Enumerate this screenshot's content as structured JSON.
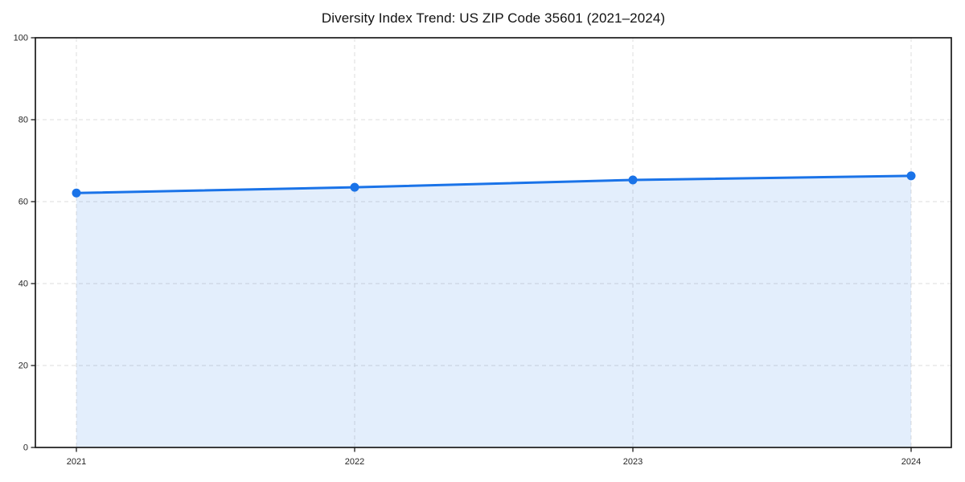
{
  "chart_data": {
    "type": "area",
    "title": "Diversity Index Trend: US ZIP Code 35601 (2021–2024)",
    "x": [
      "2021",
      "2022",
      "2023",
      "2024"
    ],
    "series": [
      {
        "name": "Diversity Index",
        "values": [
          62.1,
          63.5,
          65.3,
          66.3
        ]
      }
    ],
    "xlabel": "",
    "ylabel": "",
    "ylim": [
      0,
      100
    ],
    "yticks": [
      0,
      20,
      40,
      60,
      80,
      100
    ],
    "grid": true,
    "legend": false,
    "colors": {
      "line": "#1a73e8",
      "marker": "#1a73e8",
      "fill": "rgba(26,115,232,0.12)",
      "grid": "#dcdcdc",
      "axis": "#1a1a1a",
      "tick_label": "#262626",
      "title": "#111111",
      "background": "#ffffff"
    }
  }
}
